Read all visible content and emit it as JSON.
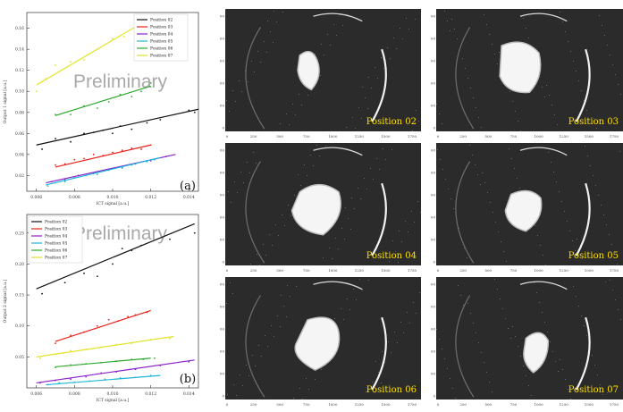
{
  "figure": {
    "watermark": "Preliminary",
    "plots": [
      {
        "label": "(a)",
        "ylabel": "Output 1 signal [a.u.]",
        "xlabel": "ICT signal [a.u.]",
        "xticks": [
          "0.006",
          "0.008",
          "0.010",
          "0.012",
          "0.014"
        ],
        "yticks": [
          "0.02",
          "0.04",
          "0.06",
          "0.08",
          "0.10",
          "0.12",
          "0.14",
          "0.16"
        ]
      },
      {
        "label": "(b)",
        "ylabel": "Output 2 signal [a.u.]",
        "xlabel": "ICT signal [a.u.]",
        "xticks": [
          "0.006",
          "0.008",
          "0.010",
          "0.012",
          "0.014"
        ],
        "yticks": [
          "0.05",
          "0.10",
          "0.15",
          "0.20",
          "0.25"
        ]
      }
    ],
    "images": [
      {
        "caption": "Position 02"
      },
      {
        "caption": "Position 03"
      },
      {
        "caption": "Position 04"
      },
      {
        "caption": "Position 05"
      },
      {
        "caption": "Position 06"
      },
      {
        "caption": "Position 07"
      }
    ],
    "image_axis": {
      "yticks": [
        "1000",
        "800",
        "600",
        "400",
        "200",
        "0"
      ],
      "xticks": [
        "0",
        "250",
        "500",
        "750",
        "1000",
        "1250",
        "1500",
        "1750"
      ]
    },
    "colors": {
      "caption": "#ffe000",
      "image_bg": "#2b2b2b",
      "Position 02": "#111111",
      "Position 03": "#e8221b",
      "Position 04": "#8a1fc9",
      "Position 05": "#1fb5d6",
      "Position 06": "#2fa82f",
      "Position 07": "#e3e32a"
    }
  },
  "chart_data": [
    {
      "type": "scatter",
      "title": "",
      "xlabel": "ICT signal [a.u.]",
      "ylabel": "Output 1 signal [a.u.]",
      "xlim": [
        0.0055,
        0.0145
      ],
      "ylim": [
        0.005,
        0.175
      ],
      "legend": "top-right",
      "series": [
        {
          "name": "Position 02",
          "color": "#111111",
          "fit": [
            [
              0.006,
              0.049
            ],
            [
              0.0145,
              0.083
            ]
          ],
          "x": [
            0.0063,
            0.007,
            0.0078,
            0.0085,
            0.009,
            0.0095,
            0.01,
            0.0104,
            0.011,
            0.0118,
            0.0125,
            0.014,
            0.0143
          ],
          "y": [
            0.045,
            0.055,
            0.052,
            0.06,
            0.061,
            0.063,
            0.06,
            0.067,
            0.064,
            0.07,
            0.073,
            0.082,
            0.08
          ]
        },
        {
          "name": "Position 03",
          "color": "#e8221b",
          "fit": [
            [
              0.007,
              0.028
            ],
            [
              0.012,
              0.049
            ]
          ],
          "x": [
            0.007,
            0.0075,
            0.008,
            0.0085,
            0.009,
            0.0095,
            0.01,
            0.0105,
            0.011,
            0.0115,
            0.012
          ],
          "y": [
            0.03,
            0.031,
            0.035,
            0.036,
            0.04,
            0.039,
            0.042,
            0.044,
            0.046,
            0.045,
            0.049
          ]
        },
        {
          "name": "Position 04",
          "color": "#8a1fc9",
          "fit": [
            [
              0.0065,
              0.013
            ],
            [
              0.0133,
              0.04
            ]
          ],
          "x": [
            0.0068,
            0.0075,
            0.0082,
            0.009,
            0.0098,
            0.0105,
            0.0112,
            0.012,
            0.0128
          ],
          "y": [
            0.014,
            0.016,
            0.02,
            0.022,
            0.026,
            0.028,
            0.031,
            0.034,
            0.038
          ]
        },
        {
          "name": "Position 05",
          "color": "#1fb5d6",
          "fit": [
            [
              0.0065,
              0.011
            ],
            [
              0.0125,
              0.037
            ]
          ],
          "x": [
            0.0066,
            0.007,
            0.0075,
            0.008,
            0.0086,
            0.0092,
            0.0098,
            0.0105,
            0.011,
            0.0118,
            0.0122
          ],
          "y": [
            0.01,
            0.013,
            0.014,
            0.018,
            0.02,
            0.021,
            0.025,
            0.027,
            0.03,
            0.033,
            0.035
          ]
        },
        {
          "name": "Position 06",
          "color": "#2fa82f",
          "fit": [
            [
              0.007,
              0.077
            ],
            [
              0.012,
              0.105
            ]
          ],
          "x": [
            0.007,
            0.0078,
            0.0085,
            0.0092,
            0.0098,
            0.0104,
            0.011,
            0.0115,
            0.012
          ],
          "y": [
            0.078,
            0.078,
            0.086,
            0.084,
            0.09,
            0.097,
            0.095,
            0.1,
            0.108
          ]
        },
        {
          "name": "Position 07",
          "color": "#e3e32a",
          "fit": [
            [
              0.006,
              0.106
            ],
            [
              0.012,
              0.17
            ]
          ],
          "x": [
            0.006,
            0.0065,
            0.007,
            0.0078,
            0.0085,
            0.0092,
            0.01,
            0.0106,
            0.0112,
            0.0118
          ],
          "y": [
            0.1,
            0.112,
            0.125,
            0.128,
            0.13,
            0.14,
            0.15,
            0.152,
            0.163,
            0.168
          ]
        }
      ]
    },
    {
      "type": "scatter",
      "title": "",
      "xlabel": "ICT signal [a.u.]",
      "ylabel": "Output 2 signal [a.u.]",
      "xlim": [
        0.0055,
        0.0145
      ],
      "ylim": [
        0.0,
        0.28
      ],
      "legend": "top-left",
      "series": [
        {
          "name": "Position 02",
          "color": "#111111",
          "fit": [
            [
              0.006,
              0.16
            ],
            [
              0.0143,
              0.265
            ]
          ],
          "x": [
            0.0063,
            0.0075,
            0.0085,
            0.0092,
            0.01,
            0.0105,
            0.011,
            0.0115,
            0.013,
            0.0143
          ],
          "y": [
            0.152,
            0.17,
            0.185,
            0.18,
            0.2,
            0.225,
            0.222,
            0.23,
            0.24,
            0.25
          ]
        },
        {
          "name": "Position 03",
          "color": "#e8221b",
          "fit": [
            [
              0.007,
              0.075
            ],
            [
              0.012,
              0.125
            ]
          ],
          "x": [
            0.007,
            0.0078,
            0.0085,
            0.0092,
            0.0098,
            0.0103,
            0.0108,
            0.0112,
            0.0118
          ],
          "y": [
            0.072,
            0.085,
            0.09,
            0.1,
            0.11,
            0.108,
            0.115,
            0.118,
            0.122
          ]
        },
        {
          "name": "Position 04",
          "color": "#8a1fc9",
          "fit": [
            [
              0.006,
              0.008
            ],
            [
              0.0143,
              0.045
            ]
          ],
          "x": [
            0.0062,
            0.007,
            0.0078,
            0.0086,
            0.0094,
            0.0102,
            0.0112,
            0.0125,
            0.014
          ],
          "y": [
            0.008,
            0.012,
            0.014,
            0.018,
            0.024,
            0.026,
            0.03,
            0.036,
            0.042
          ]
        },
        {
          "name": "Position 05",
          "color": "#1fb5d6",
          "fit": [
            [
              0.0065,
              0.005
            ],
            [
              0.0125,
              0.02
            ]
          ],
          "x": [
            0.0066,
            0.0072,
            0.008,
            0.0088,
            0.0096,
            0.0104,
            0.0112,
            0.012
          ],
          "y": [
            0.005,
            0.008,
            0.009,
            0.011,
            0.014,
            0.016,
            0.017,
            0.02
          ]
        },
        {
          "name": "Position 06",
          "color": "#2fa82f",
          "fit": [
            [
              0.007,
              0.034
            ],
            [
              0.012,
              0.048
            ]
          ],
          "x": [
            0.007,
            0.0078,
            0.0086,
            0.0094,
            0.0102,
            0.011,
            0.0116,
            0.0122
          ],
          "y": [
            0.033,
            0.037,
            0.039,
            0.041,
            0.043,
            0.046,
            0.046,
            0.048
          ]
        },
        {
          "name": "Position 07",
          "color": "#e3e32a",
          "fit": [
            [
              0.006,
              0.05
            ],
            [
              0.0132,
              0.083
            ]
          ],
          "x": [
            0.0062,
            0.007,
            0.0078,
            0.0086,
            0.0094,
            0.0102,
            0.011,
            0.012,
            0.013
          ],
          "y": [
            0.048,
            0.055,
            0.06,
            0.062,
            0.066,
            0.07,
            0.072,
            0.078,
            0.08
          ]
        }
      ]
    }
  ]
}
